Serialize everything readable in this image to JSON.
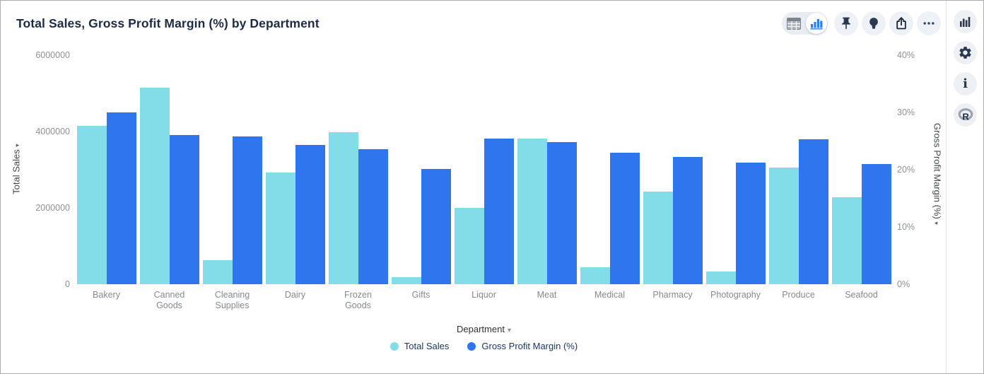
{
  "title": "Total Sales, Gross Profit Margin (%) by Department",
  "toolbar": {
    "icons": [
      "table-view-icon",
      "bar-chart-view-icon",
      "pin-icon",
      "lightbulb-icon",
      "export-icon",
      "ellipsis-icon"
    ],
    "selected_view": "bar-chart"
  },
  "side_rail": {
    "icons": [
      "chart-type-icon",
      "gear-icon",
      "info-icon",
      "r-logo-icon"
    ]
  },
  "colors": {
    "total_sales": "#82dde9",
    "gross_profit_margin": "#2f76ee",
    "title_text": "#1d2b45",
    "tick_text": "#8d9196",
    "legend_text": "#1d3661",
    "icon_dark": "#2b3850",
    "toolbar_blue": "#2e7ff2"
  },
  "chart_data": {
    "type": "bar",
    "title": "Total Sales, Gross Profit Margin (%) by Department",
    "categories": [
      "Bakery",
      "Canned Goods",
      "Cleaning Supplies",
      "Dairy",
      "Frozen Goods",
      "Gifts",
      "Liquor",
      "Meat",
      "Medical",
      "Pharmacy",
      "Photography",
      "Produce",
      "Seafood"
    ],
    "series": [
      {
        "name": "Total Sales",
        "axis": "left",
        "color": "#82dde9",
        "values": [
          4150000,
          5150000,
          630000,
          2930000,
          3980000,
          180000,
          2000000,
          3820000,
          440000,
          2430000,
          340000,
          3060000,
          2280000
        ]
      },
      {
        "name": "Gross Profit Margin (%)",
        "axis": "right",
        "color": "#2f76ee",
        "values": [
          30.0,
          26.0,
          25.8,
          24.3,
          23.6,
          20.1,
          25.4,
          24.8,
          23.0,
          22.2,
          21.2,
          25.3,
          21.0
        ]
      }
    ],
    "xlabel": "Department",
    "ylabel_left": "Total Sales",
    "ylabel_right": "Gross Profit Margin (%)",
    "ylim_left": [
      0,
      6000000
    ],
    "ylim_right": [
      0,
      40
    ],
    "y_left_ticks": [
      "0",
      "2000000",
      "4000000",
      "6000000"
    ],
    "y_right_ticks": [
      "0%",
      "10%",
      "20%",
      "30%",
      "40%"
    ],
    "grid": false,
    "legend_position": "bottom",
    "legend": [
      "Total Sales",
      "Gross Profit Margin (%)"
    ]
  },
  "xaxis": {
    "label": "Department",
    "caret": "▾"
  },
  "axis_arrows": {
    "left": "▸",
    "right": "◂"
  }
}
